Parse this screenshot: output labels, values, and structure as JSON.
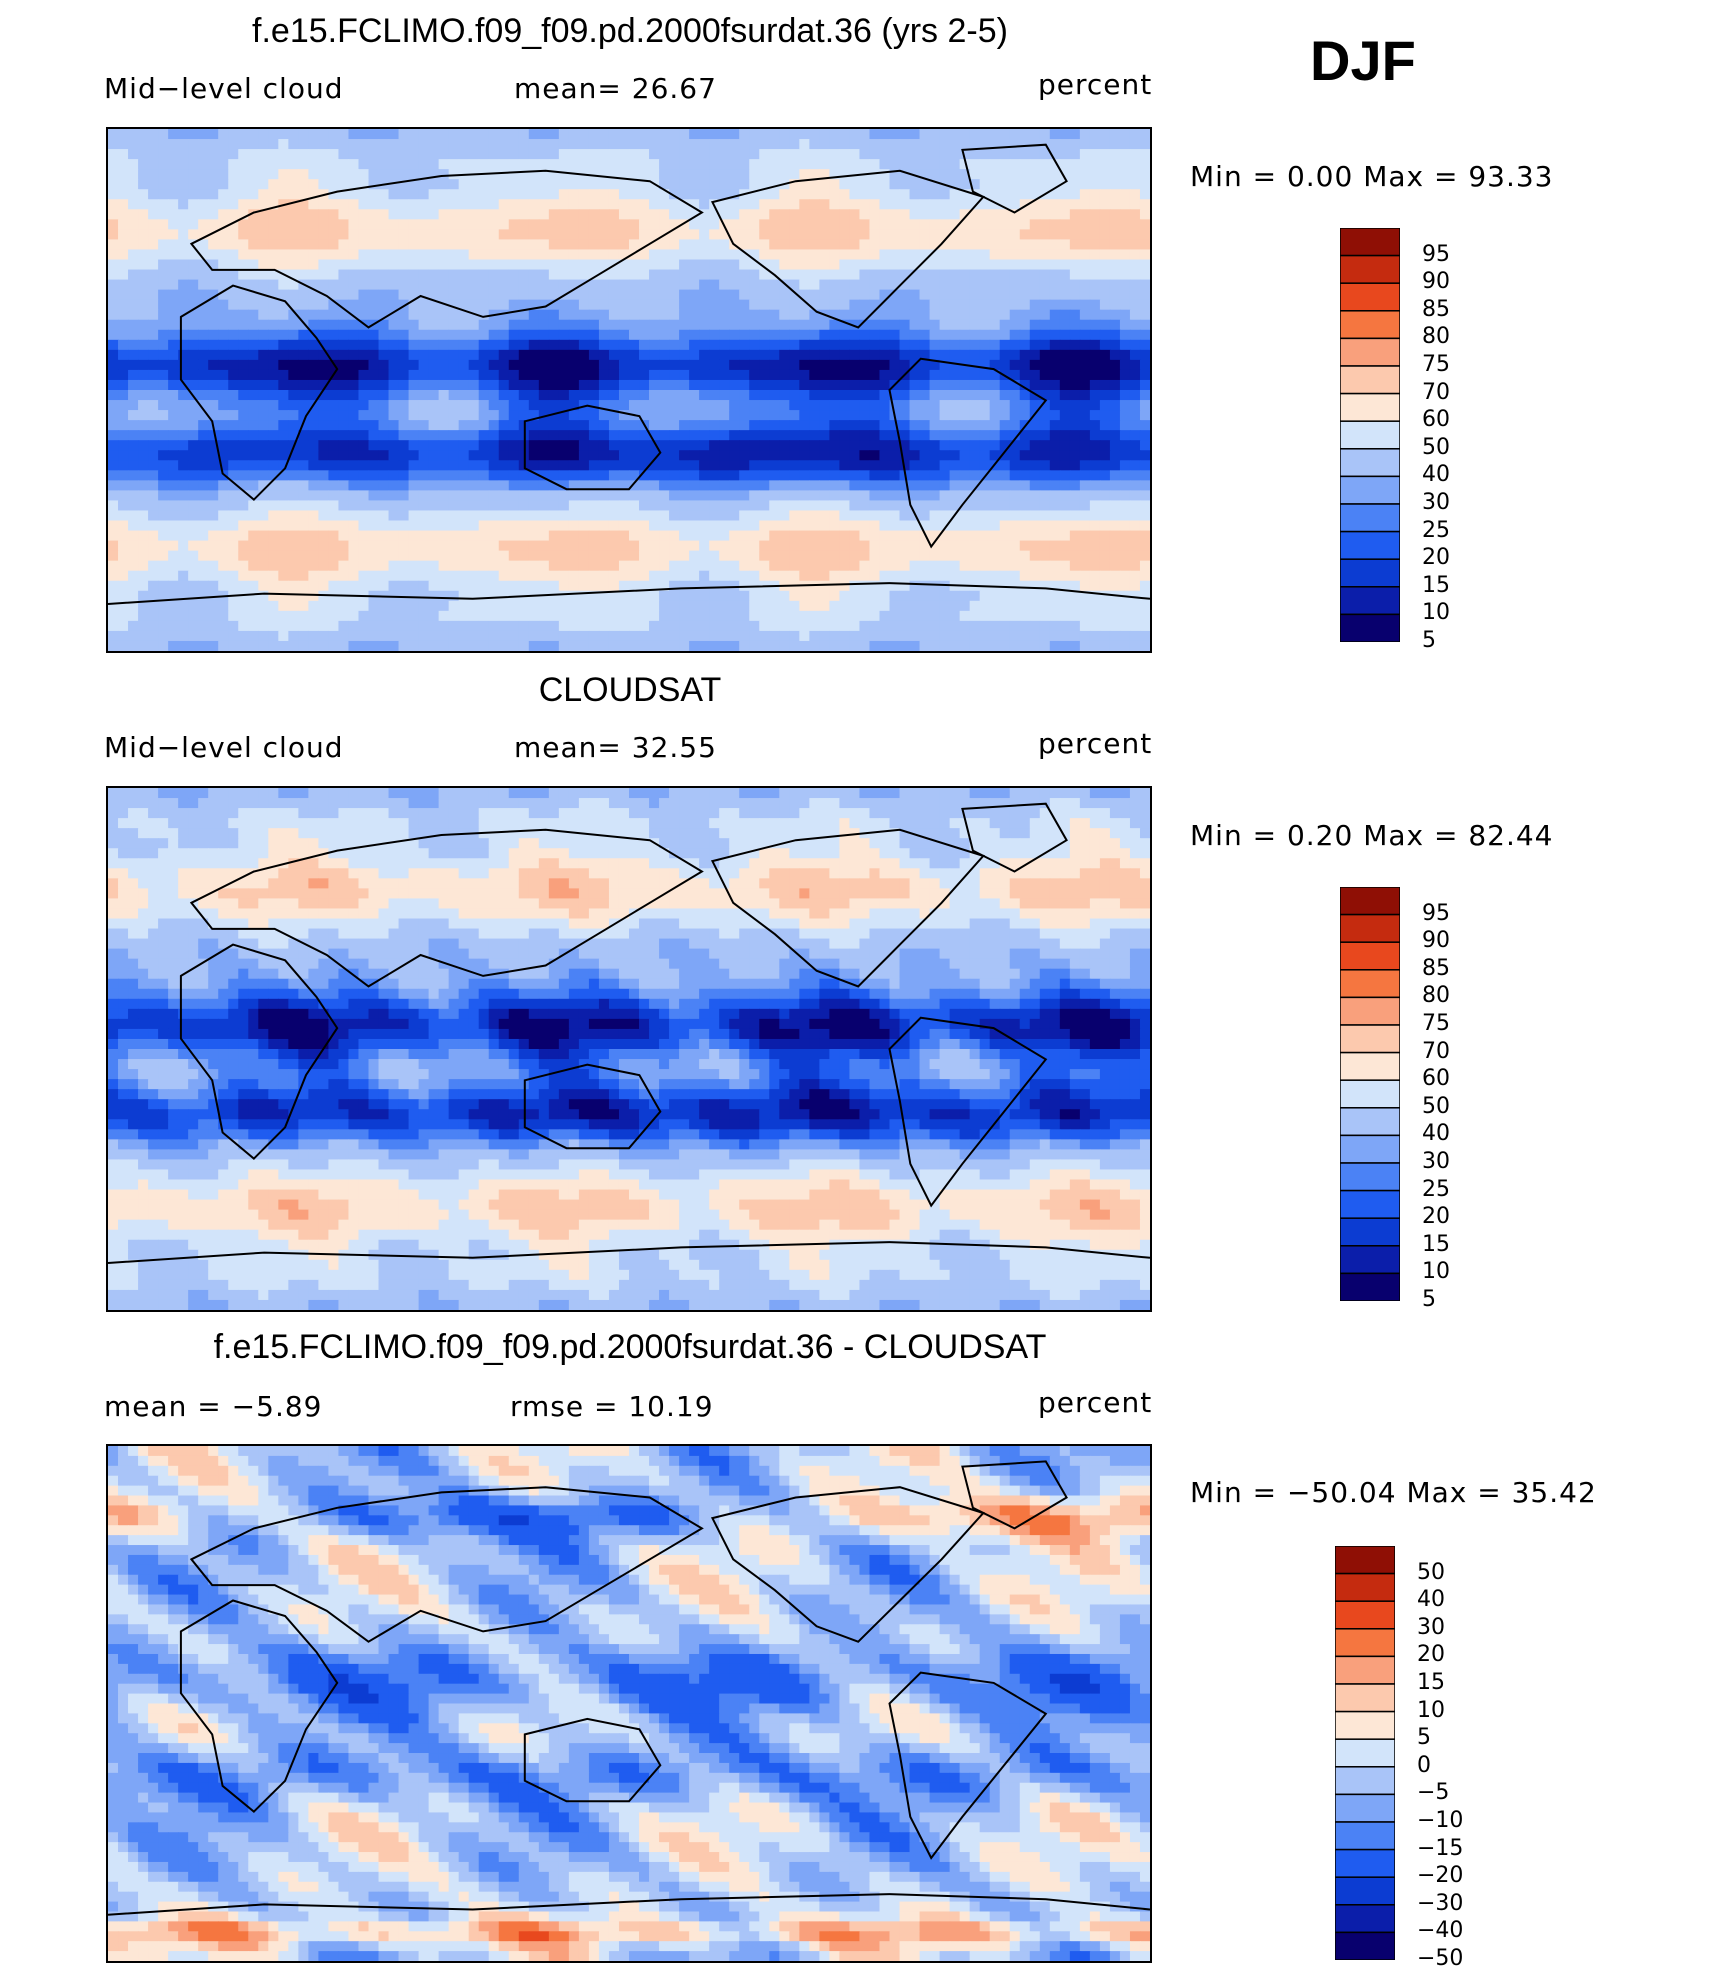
{
  "season": "DJF",
  "colors": {
    "abs_scale": [
      "#08006e",
      "#0b1eaa",
      "#0c3cd2",
      "#1f5cf0",
      "#4b82f5",
      "#7ea6f7",
      "#a9c4f8",
      "#d2e4fa",
      "#fde7d6",
      "#fcc9ae",
      "#f9a07c",
      "#f57640",
      "#e8481e",
      "#c52b0f",
      "#8f0f05"
    ],
    "diff_scale": [
      "#08006e",
      "#0b1eaa",
      "#0c3cd2",
      "#1f5cf0",
      "#4b82f5",
      "#7ea6f7",
      "#a9c4f8",
      "#d2e4fa",
      "#fde7d6",
      "#fcc9ae",
      "#f9a07c",
      "#f57640",
      "#e8481e",
      "#c52b0f",
      "#8f0f05"
    ],
    "coast": "#000000"
  },
  "panels": [
    {
      "title": "f.e15.FCLIMO.f09_f09.pd.2000fsurdat.36 (yrs 2-5)",
      "left_label": "Mid−level cloud",
      "center_label": "mean=   26.67",
      "right_label": "percent",
      "minmax": "Min  =     0.00  Max  =    93.33",
      "colorbar_labels": [
        "95",
        "90",
        "85",
        "80",
        "75",
        "70",
        "60",
        "50",
        "40",
        "30",
        "25",
        "20",
        "15",
        "10",
        "5"
      ]
    },
    {
      "title": "CLOUDSAT",
      "left_label": "Mid−level cloud",
      "center_label": "mean=   32.55",
      "right_label": "percent",
      "minmax": "Min  =     0.20  Max  =    82.44",
      "colorbar_labels": [
        "95",
        "90",
        "85",
        "80",
        "75",
        "70",
        "60",
        "50",
        "40",
        "30",
        "25",
        "20",
        "15",
        "10",
        "5"
      ]
    },
    {
      "title": "f.e15.FCLIMO.f09_f09.pd.2000fsurdat.36 - CLOUDSAT",
      "left_label": "mean  =    −5.89",
      "center_label": "rmse  =    10.19",
      "right_label": "percent",
      "minmax": "Min  = −50.04  Max  =    35.42",
      "colorbar_labels": [
        "50",
        "40",
        "30",
        "20",
        "15",
        "10",
        "5",
        "0",
        "−5",
        "−10",
        "−15",
        "−20",
        "−30",
        "−40",
        "−50"
      ]
    }
  ],
  "chart_data": [
    {
      "type": "heatmap",
      "title": "f.e15.FCLIMO.f09_f09.pd.2000fsurdat.36 (yrs 2-5)",
      "field": "Mid−level cloud",
      "units": "percent",
      "mean": 26.67,
      "min": 0.0,
      "max": 93.33,
      "levels": [
        5,
        10,
        15,
        20,
        25,
        30,
        40,
        50,
        60,
        70,
        75,
        80,
        85,
        90,
        95
      ]
    },
    {
      "type": "heatmap",
      "title": "CLOUDSAT",
      "field": "Mid−level cloud",
      "units": "percent",
      "mean": 32.55,
      "min": 0.2,
      "max": 82.44,
      "levels": [
        5,
        10,
        15,
        20,
        25,
        30,
        40,
        50,
        60,
        70,
        75,
        80,
        85,
        90,
        95
      ]
    },
    {
      "type": "heatmap",
      "title": "f.e15.FCLIMO.f09_f09.pd.2000fsurdat.36 - CLOUDSAT",
      "units": "percent",
      "mean": -5.89,
      "rmse": 10.19,
      "min": -50.04,
      "max": 35.42,
      "levels": [
        -50,
        -40,
        -30,
        -20,
        -15,
        -10,
        -5,
        0,
        5,
        10,
        15,
        20,
        30,
        40,
        50
      ]
    }
  ]
}
